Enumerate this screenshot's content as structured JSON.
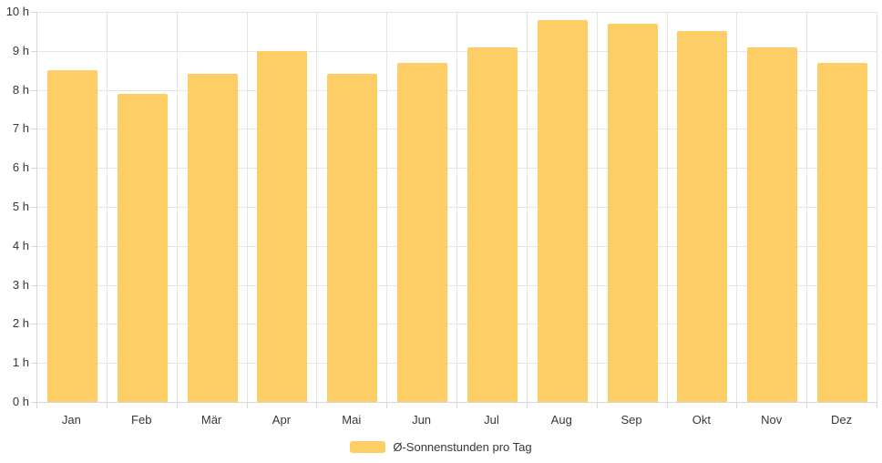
{
  "chart_data": {
    "type": "bar",
    "title": "",
    "xlabel": "",
    "ylabel": "",
    "categories": [
      "Jan",
      "Feb",
      "Mär",
      "Apr",
      "Mai",
      "Jun",
      "Jul",
      "Aug",
      "Sep",
      "Okt",
      "Nov",
      "Dez"
    ],
    "series": [
      {
        "name": "Ø-Sonnenstunden pro Tag",
        "values": [
          8.5,
          7.9,
          8.4,
          9.0,
          8.4,
          8.7,
          9.1,
          9.8,
          9.7,
          9.5,
          9.1,
          8.7
        ]
      }
    ],
    "ylim": [
      0,
      10
    ],
    "y_tick_step": 1,
    "y_tick_suffix": " h",
    "y_tick_labels": [
      "0 h",
      "1 h",
      "2 h",
      "3 h",
      "4 h",
      "5 h",
      "6 h",
      "7 h",
      "8 h",
      "9 h",
      "10 h"
    ],
    "grid": true,
    "legend_position": "bottom",
    "colors": {
      "bar": "#FDCD66",
      "grid": "#e5e5e5",
      "axis": "#d6d6d6",
      "text": "#373737",
      "background": "#ffffff"
    }
  },
  "legend": {
    "label": "Ø-Sonnenstunden pro Tag",
    "swatch_color": "#FDCD66"
  }
}
